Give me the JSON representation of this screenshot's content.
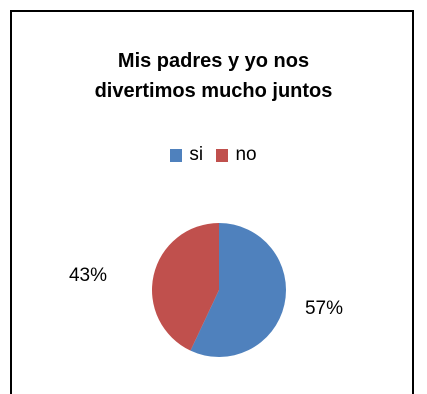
{
  "chart_data": {
    "type": "pie",
    "title_lines": [
      "Mis padres y yo nos",
      "divertimos mucho juntos"
    ],
    "categories": [
      "si",
      "no"
    ],
    "values": [
      57,
      43
    ],
    "labels": [
      "57%",
      "43%"
    ],
    "colors": [
      "#4F81BD",
      "#C0504D"
    ],
    "legend_position": "top"
  }
}
